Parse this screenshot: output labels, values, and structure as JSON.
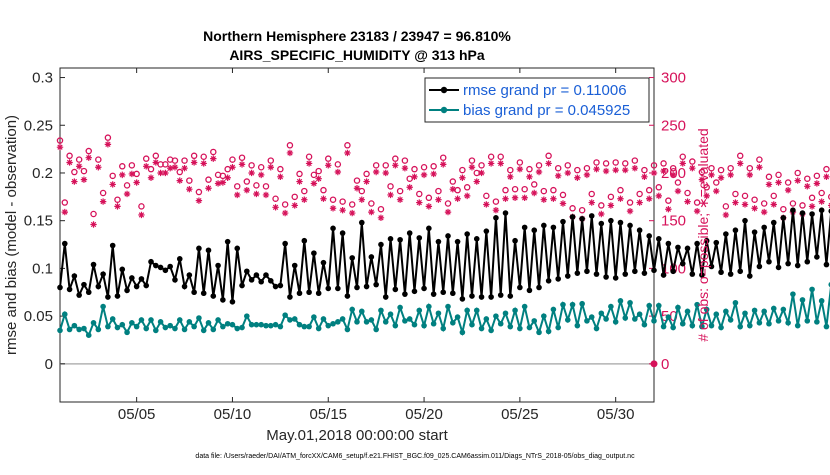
{
  "chart_data": {
    "type": "line",
    "title_line1": "Northern Hemisphere 23183 / 23947 = 96.810%",
    "title_line2": "AIRS_SPECIFIC_HUMIDITY @ 313 hPa",
    "xlabel": "May.01,2018 00:00:00 start",
    "ylabel_left": "rmse and bias (model - observation)",
    "ylabel_right": "# of obs: o=possible; ∗=evaluated",
    "footer": "data file: /Users/raeder/DAI/ATM_forcXX/CAM6_setup/f.e21.FHIST_BGC.f09_025.CAM6assim.011/Diags_NTrS_2018-05/obs_diag_output.nc",
    "x_range": [
      1,
      32
    ],
    "x_ticks": [
      5,
      10,
      15,
      20,
      25,
      30
    ],
    "x_tick_labels": [
      "05/05",
      "05/10",
      "05/15",
      "05/20",
      "05/25",
      "05/30"
    ],
    "y_left_range": [
      -0.04,
      0.31
    ],
    "y_left_ticks": [
      0,
      0.05,
      0.1,
      0.15,
      0.2,
      0.25,
      0.3
    ],
    "y_left_tick_labels": [
      "0",
      "0.05",
      "0.1",
      "0.15",
      "0.2",
      "0.25",
      "0.3"
    ],
    "y_right_range": [
      -40,
      310
    ],
    "y_right_ticks": [
      0,
      50,
      100,
      150,
      200,
      250,
      300
    ],
    "y_right_tick_labels": [
      "0",
      "50",
      "100",
      "150",
      "200",
      "250",
      "300"
    ],
    "colors": {
      "rmse": "#000000",
      "bias": "#008080",
      "obs": "#d6125a",
      "zero": "#b3b3b3",
      "legend_text": "#1a5fd6"
    },
    "x_start": 1.0,
    "x_step": 0.25,
    "series": [
      {
        "name": "rmse grand pr = 0.11006",
        "key": "rmse",
        "values": [
          0.08,
          0.126,
          0.078,
          0.092,
          0.072,
          0.083,
          0.075,
          0.104,
          0.081,
          0.094,
          0.07,
          0.124,
          0.071,
          0.099,
          0.077,
          0.09,
          0.081,
          0.089,
          0.082,
          0.107,
          0.103,
          0.101,
          0.098,
          0.102,
          0.088,
          0.11,
          0.081,
          0.093,
          0.075,
          0.121,
          0.074,
          0.119,
          0.071,
          0.103,
          0.067,
          0.128,
          0.065,
          0.121,
          0.082,
          0.097,
          0.088,
          0.093,
          0.086,
          0.093,
          0.087,
          0.081,
          0.082,
          0.126,
          0.07,
          0.103,
          0.074,
          0.129,
          0.075,
          0.116,
          0.074,
          0.106,
          0.079,
          0.142,
          0.079,
          0.137,
          0.071,
          0.111,
          0.08,
          0.148,
          0.081,
          0.112,
          0.083,
          0.125,
          0.07,
          0.131,
          0.078,
          0.13,
          0.073,
          0.137,
          0.076,
          0.132,
          0.079,
          0.142,
          0.073,
          0.128,
          0.075,
          0.134,
          0.074,
          0.128,
          0.068,
          0.136,
          0.071,
          0.131,
          0.07,
          0.139,
          0.07,
          0.153,
          0.072,
          0.158,
          0.071,
          0.129,
          0.08,
          0.143,
          0.077,
          0.14,
          0.08,
          0.145,
          0.087,
          0.143,
          0.089,
          0.149,
          0.092,
          0.154,
          0.095,
          0.152,
          0.097,
          0.155,
          0.094,
          0.147,
          0.091,
          0.15,
          0.09,
          0.148,
          0.094,
          0.145,
          0.097,
          0.14,
          0.095,
          0.134,
          0.098,
          0.131,
          0.093,
          0.126,
          0.097,
          0.122,
          0.105,
          0.121,
          0.094,
          0.126,
          0.093,
          0.129,
          0.102,
          0.127,
          0.096,
          0.136,
          0.094,
          0.14,
          0.097,
          0.15,
          0.092,
          0.138,
          0.102,
          0.143,
          0.107,
          0.148,
          0.101,
          0.153,
          0.105,
          0.161,
          0.103,
          0.158,
          0.107,
          0.157,
          0.112,
          0.161,
          0.104,
          0.16,
          0.105,
          0.157,
          0.111,
          0.163,
          0.109,
          0.178,
          0.114,
          0.163,
          0.103,
          0.151,
          0.101,
          0.145,
          0.105,
          0.142,
          0.177
        ]
      },
      {
        "name": "bias grand pr = 0.045925",
        "key": "bias",
        "values": [
          0.035,
          0.052,
          0.036,
          0.04,
          0.036,
          0.037,
          0.03,
          0.043,
          0.036,
          0.06,
          0.039,
          0.047,
          0.038,
          0.041,
          0.033,
          0.043,
          0.039,
          0.046,
          0.037,
          0.046,
          0.035,
          0.044,
          0.038,
          0.04,
          0.037,
          0.046,
          0.036,
          0.044,
          0.039,
          0.048,
          0.035,
          0.043,
          0.036,
          0.046,
          0.039,
          0.042,
          0.041,
          0.037,
          0.038,
          0.05,
          0.041,
          0.041,
          0.041,
          0.04,
          0.04,
          0.041,
          0.039,
          0.051,
          0.046,
          0.047,
          0.041,
          0.039,
          0.039,
          0.049,
          0.037,
          0.047,
          0.04,
          0.042,
          0.044,
          0.047,
          0.036,
          0.057,
          0.044,
          0.055,
          0.044,
          0.046,
          0.036,
          0.056,
          0.044,
          0.052,
          0.04,
          0.059,
          0.045,
          0.047,
          0.041,
          0.056,
          0.04,
          0.06,
          0.042,
          0.053,
          0.037,
          0.06,
          0.043,
          0.049,
          0.033,
          0.056,
          0.041,
          0.056,
          0.037,
          0.047,
          0.035,
          0.05,
          0.042,
          0.053,
          0.039,
          0.056,
          0.037,
          0.06,
          0.038,
          0.045,
          0.033,
          0.05,
          0.034,
          0.057,
          0.038,
          0.062,
          0.046,
          0.062,
          0.04,
          0.063,
          0.045,
          0.049,
          0.037,
          0.053,
          0.047,
          0.06,
          0.044,
          0.066,
          0.048,
          0.064,
          0.047,
          0.052,
          0.041,
          0.061,
          0.045,
          0.061,
          0.039,
          0.049,
          0.038,
          0.059,
          0.042,
          0.055,
          0.04,
          0.062,
          0.039,
          0.057,
          0.04,
          0.052,
          0.038,
          0.055,
          0.046,
          0.064,
          0.039,
          0.053,
          0.04,
          0.056,
          0.043,
          0.055,
          0.042,
          0.058,
          0.045,
          0.057,
          0.043,
          0.073,
          0.04,
          0.067,
          0.045,
          0.078,
          0.044,
          0.066,
          0.039,
          0.083,
          0.044,
          0.062,
          0.04,
          0.059,
          0.045,
          0.072,
          0.039,
          0.054,
          0.032,
          0.06,
          0.033,
          0.061,
          0.041,
          0.054,
          0.038,
          0.055,
          0.062
        ]
      },
      {
        "name": "# of obs possible",
        "key": "obs_possible",
        "values": [
          234,
          169,
          218,
          201,
          214,
          202,
          223,
          157,
          214,
          179,
          237,
          197,
          172,
          207,
          187,
          208,
          199,
          165,
          215,
          204,
          218,
          209,
          209,
          214,
          213,
          201,
          213,
          192,
          218,
          180,
          217,
          193,
          222,
          198,
          197,
          204,
          214,
          186,
          216,
          191,
          208,
          187,
          206,
          186,
          213,
          173,
          204,
          167,
          229,
          175,
          199,
          181,
          217,
          198,
          202,
          182,
          215,
          172,
          209,
          170,
          229,
          167,
          192,
          181,
          199,
          168,
          208,
          162,
          208,
          186,
          215,
          181,
          213,
          194,
          204,
          178,
          206,
          174,
          207,
          181,
          216,
          168,
          191,
          182,
          203,
          185,
          213,
          200,
          208,
          176,
          217,
          170,
          217,
          182,
          203,
          183,
          211,
          183,
          204,
          188,
          208,
          181,
          218,
          182,
          205,
          177,
          208,
          163,
          203,
          161,
          205,
          178,
          211,
          166,
          210,
          175,
          211,
          182,
          210,
          169,
          213,
          178,
          203,
          182,
          208,
          185,
          210,
          171,
          205,
          190,
          217,
          179,
          212,
          169,
          201,
          185,
          205,
          190,
          203,
          165,
          205,
          178,
          218,
          176,
          205,
          172,
          214,
          168,
          196,
          176,
          198,
          162,
          190,
          168,
          200,
          166,
          194,
          174,
          197,
          179,
          204,
          175,
          203,
          159,
          189,
          172,
          201,
          169,
          189,
          175,
          188,
          171,
          191,
          167,
          193,
          170,
          197,
          172,
          201,
          166,
          196,
          167,
          183,
          170,
          157
        ]
      },
      {
        "name": "# of obs evaluated",
        "key": "obs_evaluated",
        "values": [
          227,
          159,
          211,
          191,
          207,
          193,
          216,
          146,
          206,
          170,
          230,
          188,
          165,
          198,
          178,
          199,
          190,
          156,
          207,
          195,
          211,
          200,
          200,
          205,
          206,
          192,
          205,
          183,
          211,
          171,
          210,
          184,
          215,
          189,
          190,
          195,
          206,
          177,
          209,
          182,
          200,
          178,
          198,
          177,
          206,
          164,
          196,
          158,
          221,
          166,
          191,
          172,
          210,
          189,
          194,
          173,
          208,
          163,
          201,
          161,
          221,
          158,
          184,
          172,
          191,
          159,
          201,
          153,
          200,
          177,
          208,
          172,
          205,
          185,
          196,
          169,
          198,
          165,
          199,
          172,
          209,
          159,
          183,
          173,
          195,
          176,
          206,
          191,
          200,
          167,
          210,
          161,
          210,
          173,
          196,
          174,
          204,
          174,
          196,
          179,
          201,
          172,
          210,
          173,
          197,
          168,
          200,
          154,
          195,
          152,
          198,
          169,
          204,
          157,
          202,
          166,
          203,
          173,
          203,
          160,
          205,
          169,
          196,
          173,
          200,
          176,
          202,
          162,
          198,
          181,
          210,
          170,
          205,
          160,
          193,
          176,
          198,
          181,
          195,
          156,
          198,
          169,
          210,
          167,
          198,
          163,
          206,
          159,
          188,
          167,
          190,
          153,
          182,
          159,
          192,
          157,
          186,
          165,
          189,
          170,
          196,
          166,
          195,
          150,
          181,
          163,
          193,
          160,
          181,
          166,
          180,
          162,
          183,
          158,
          185,
          161,
          189,
          163,
          193,
          157,
          188,
          158,
          175,
          161,
          162
        ]
      }
    ],
    "end_marker_value": 0,
    "legend_position": "top-right",
    "grid": false
  }
}
